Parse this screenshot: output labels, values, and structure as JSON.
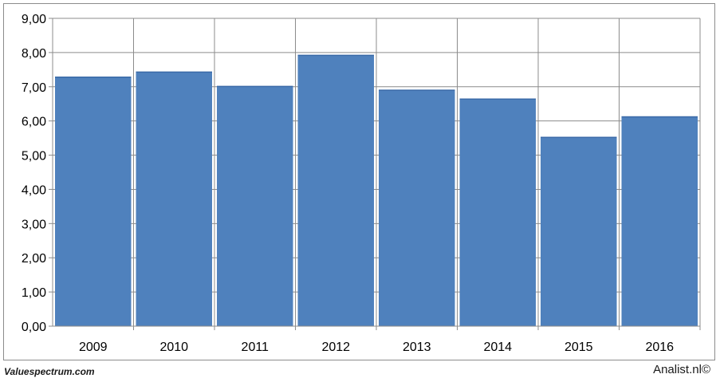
{
  "chart_data": {
    "type": "bar",
    "categories": [
      "2009",
      "2010",
      "2011",
      "2012",
      "2013",
      "2014",
      "2015",
      "2016"
    ],
    "values": [
      7.28,
      7.43,
      7.01,
      7.92,
      6.9,
      6.64,
      5.52,
      6.12
    ],
    "ylim": [
      0,
      9
    ],
    "yticks": [
      "0,00",
      "1,00",
      "2,00",
      "3,00",
      "4,00",
      "5,00",
      "6,00",
      "7,00",
      "8,00",
      "9,00"
    ],
    "bar_color": "#4f81bd",
    "grid": true,
    "legend": "none"
  },
  "footer": {
    "left_credit": "Valuespectrum.com",
    "right_credit": "Analist.nl©"
  }
}
